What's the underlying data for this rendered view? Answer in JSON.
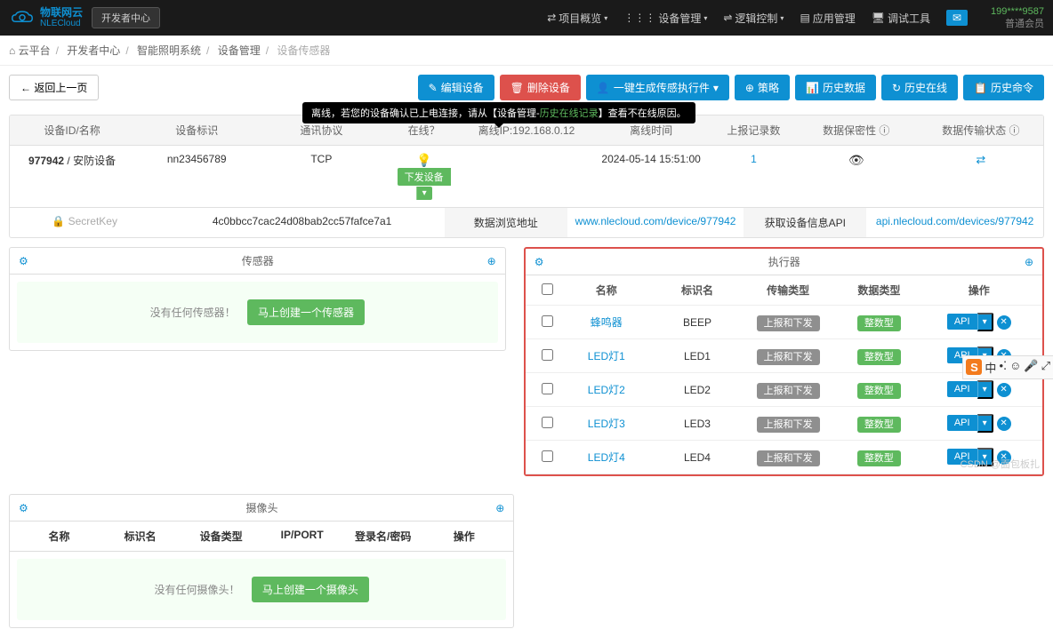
{
  "header": {
    "brand_cn": "物联网云",
    "brand_en": "NLECloud",
    "dev_center": "开发者中心",
    "nav": [
      {
        "label": "项目概览",
        "icon": "⇄"
      },
      {
        "label": "设备管理",
        "icon": "⋮⋮⋮"
      },
      {
        "label": "逻辑控制",
        "icon": "⇌"
      },
      {
        "label": "应用管理",
        "icon": "▤"
      },
      {
        "label": "调试工具",
        "icon": "🖥"
      }
    ],
    "user_phone": "199****9587",
    "user_level": "普通会员"
  },
  "breadcrumb": [
    "云平台",
    "开发者中心",
    "智能照明系统",
    "设备管理",
    "设备传感器"
  ],
  "back_btn": "← 返回上一页",
  "actions": {
    "edit": "编辑设备",
    "delete": "删除设备",
    "gen": "一键生成传感执行件",
    "strategy": "策略",
    "history_data": "历史数据",
    "history_online": "历史在线",
    "history_cmd": "历史命令"
  },
  "tooltip": {
    "prefix": "离线，若您的设备确认已上电连接，请从【设备管理-",
    "link": "历史在线记录",
    "suffix": "】查看不在线原因。"
  },
  "table": {
    "headers": [
      "设备ID/名称",
      "设备标识",
      "通讯协议",
      "在线？",
      "离线IP:192.168.0.12",
      "离线时间",
      "上报记录数",
      "数据保密性 ⓘ",
      "数据传输状态 ⓘ"
    ],
    "row1": {
      "id": "977942",
      "name": "安防设备",
      "ident": "nn23456789",
      "proto": "TCP",
      "deploy": "下发设备",
      "offline_time": "2024-05-14 15:51:00",
      "records": "1"
    },
    "row2": {
      "secret": "SecretKey",
      "secret_val": "4c0bbcc7cac24d08bab2cc57fafce7a1",
      "browse_label": "数据浏览地址",
      "browse_url": "www.nlecloud.com/device/977942",
      "api_label": "获取设备信息API",
      "api_url": "api.nlecloud.com/devices/977942"
    }
  },
  "sensor_panel": {
    "title": "传感器",
    "empty": "没有任何传感器！",
    "create": "马上创建一个传感器"
  },
  "exec_panel": {
    "title": "执行器",
    "headers": {
      "name": "名称",
      "tag": "标识名",
      "ttype": "传输类型",
      "dtype": "数据类型",
      "op": "操作"
    },
    "trans_badge": "上报和下发",
    "dtype_badge": "整数型",
    "api": "API",
    "rows": [
      {
        "name": "蜂鸣器",
        "tag": "BEEP"
      },
      {
        "name": "LED灯1",
        "tag": "LED1"
      },
      {
        "name": "LED灯2",
        "tag": "LED2"
      },
      {
        "name": "LED灯3",
        "tag": "LED3"
      },
      {
        "name": "LED灯4",
        "tag": "LED4"
      }
    ]
  },
  "cam_panel": {
    "title": "摄像头",
    "headers": [
      "名称",
      "标识名",
      "设备类型",
      "IP/PORT",
      "登录名/密码",
      "操作"
    ],
    "empty": "没有任何摄像头！",
    "create": "马上创建一个摄像头"
  },
  "watermark": "CSDN @面包板扎",
  "colors": {
    "primary": "#0e90d2",
    "success": "#5eb95e",
    "danger": "#dd514c",
    "dark": "#1a1a1a"
  }
}
